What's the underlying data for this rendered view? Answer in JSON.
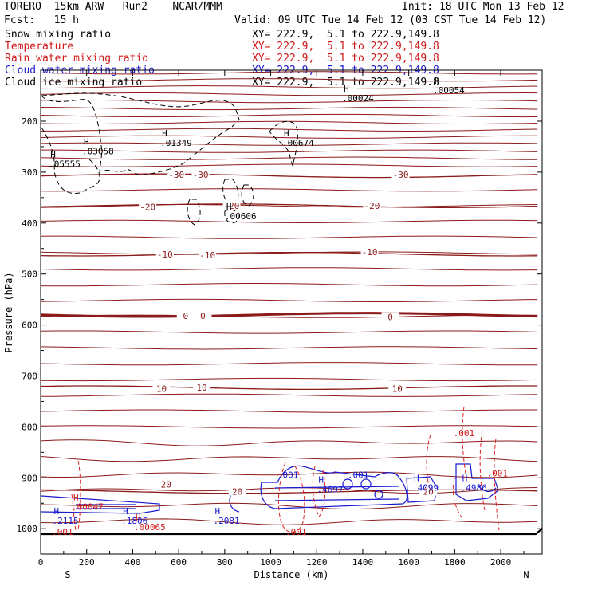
{
  "header": {
    "title": "TORERO  15km ARW   Run2    NCAR/MMM",
    "init": "Init: 18 UTC Mon 13 Feb 12",
    "fcst": "Fcst:   15 h",
    "valid": "Valid: 09 UTC Tue 14 Feb 12 (03 CST Tue 14 Feb 12)"
  },
  "legend": [
    {
      "label": "Snow mixing ratio",
      "xy": "XY= 222.9,  5.1 to 222.9,149.8",
      "color": "#000000"
    },
    {
      "label": "Temperature",
      "xy": "XY= 222.9,  5.1 to 222.9,149.8",
      "color": "#d01818"
    },
    {
      "label": "Rain water mixing ratio",
      "xy": "XY= 222.9,  5.1 to 222.9,149.8",
      "color": "#d01818"
    },
    {
      "label": "Cloud water mixing ratio",
      "xy": "XY= 222.9,  5.1 to 222.9,149.8",
      "color": "#1a1ad0"
    },
    {
      "label": "Cloud ice mixing ratio",
      "xy": "XY= 222.9,  5.1 to 222.9,149.8",
      "color": "#000000"
    }
  ],
  "chart_data": {
    "type": "cross-section",
    "xlabel": "Distance (km)",
    "ylabel": "Pressure (hPa)",
    "xlim": [
      0,
      2180
    ],
    "ylim": [
      100,
      1050
    ],
    "x_ticks": [
      0,
      200,
      400,
      600,
      800,
      1000,
      1200,
      1400,
      1600,
      1800,
      2000
    ],
    "y_ticks": [
      200,
      300,
      400,
      500,
      600,
      700,
      800,
      900,
      1000
    ],
    "left_end_label": "S",
    "right_end_label": "N",
    "colors": {
      "temperature": "#8b1a1a",
      "rain": "#e02020",
      "cloud_water": "#1a1ad0",
      "snow": "#000000"
    },
    "temperature_isotherms": [
      {
        "level": 0,
        "pressure": 580
      },
      {
        "level": -10,
        "pressure": 461
      },
      {
        "level": -20,
        "pressure": 366
      },
      {
        "level": -30,
        "pressure": 307
      },
      {
        "level": 10,
        "pressure": 723
      },
      {
        "level": 20,
        "pressure": 927
      }
    ],
    "temperature_labels": [
      {
        "text": "0",
        "x": 630,
        "p": 582
      },
      {
        "text": "0",
        "x": 705,
        "p": 582
      },
      {
        "text": "0",
        "x": 1520,
        "p": 584
      },
      {
        "text": "-10",
        "x": 540,
        "p": 461
      },
      {
        "text": "-10",
        "x": 725,
        "p": 463
      },
      {
        "text": "-10",
        "x": 1430,
        "p": 457
      },
      {
        "text": "-20",
        "x": 465,
        "p": 368
      },
      {
        "text": "-20",
        "x": 830,
        "p": 366
      },
      {
        "text": "-20",
        "x": 1440,
        "p": 366
      },
      {
        "text": "-30",
        "x": 590,
        "p": 305
      },
      {
        "text": "-30",
        "x": 695,
        "p": 305
      },
      {
        "text": "-30",
        "x": 1565,
        "p": 305
      },
      {
        "text": "10",
        "x": 525,
        "p": 725
      },
      {
        "text": "10",
        "x": 700,
        "p": 723
      },
      {
        "text": "10",
        "x": 1550,
        "p": 725
      },
      {
        "text": "20",
        "x": 545,
        "p": 913
      },
      {
        "text": "20",
        "x": 855,
        "p": 927
      },
      {
        "text": "20",
        "x": 1685,
        "p": 927
      }
    ],
    "maxima": [
      {
        "text": ".05555",
        "x": 70,
        "p": 287,
        "color": "#000000"
      },
      {
        "text": ".03058",
        "x": 215,
        "p": 262,
        "color": "#000000"
      },
      {
        "text": ".01349",
        "x": 555,
        "p": 245,
        "color": "#000000"
      },
      {
        "text": ".00674",
        "x": 1085,
        "p": 245,
        "color": "#000000"
      },
      {
        "text": ".00606",
        "x": 835,
        "p": 389,
        "color": "#000000"
      },
      {
        "text": ".00024",
        "x": 1345,
        "p": 158,
        "color": "#000000"
      },
      {
        "text": ".00054",
        "x": 1740,
        "p": 142,
        "color": "#000000"
      },
      {
        "text": ".2115",
        "x": 85,
        "p": 987,
        "color": "#1a1ad0"
      },
      {
        "text": ".1806",
        "x": 385,
        "p": 987,
        "color": "#1a1ad0"
      },
      {
        "text": ".2081",
        "x": 785,
        "p": 987,
        "color": "#1a1ad0"
      },
      {
        "text": ".4697",
        "x": 1235,
        "p": 925,
        "color": "#1a1ad0"
      },
      {
        "text": ".4099",
        "x": 1650,
        "p": 922,
        "color": "#1a1ad0"
      },
      {
        "text": ".4986",
        "x": 1860,
        "p": 922,
        "color": "#1a1ad0"
      },
      {
        "text": ".00047",
        "x": 170,
        "p": 960,
        "color": "#d01818"
      },
      {
        "text": ".00065",
        "x": 440,
        "p": 1000,
        "color": "#d01818"
      }
    ],
    "contour_labels": [
      {
        "text": ".001",
        "x": 1075,
        "p": 900,
        "color": "#1a1ad0"
      },
      {
        "text": ".001",
        "x": 1380,
        "p": 900,
        "color": "#1a1ad0"
      },
      {
        "text": ".001",
        "x": 1840,
        "p": 818,
        "color": "#d01818"
      },
      {
        "text": ".001",
        "x": 1985,
        "p": 897,
        "color": "#d01818"
      },
      {
        "text": ".001",
        "x": 95,
        "p": 1012,
        "color": "#d01818"
      },
      {
        "text": ".001",
        "x": 1110,
        "p": 1012,
        "color": "#d01818"
      }
    ]
  }
}
